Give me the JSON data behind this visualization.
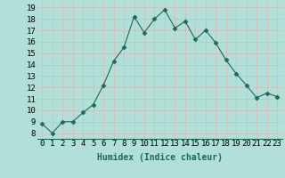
{
  "x": [
    0,
    1,
    2,
    3,
    4,
    5,
    6,
    7,
    8,
    9,
    10,
    11,
    12,
    13,
    14,
    15,
    16,
    17,
    18,
    19,
    20,
    21,
    22,
    23
  ],
  "y": [
    8.8,
    8.0,
    9.0,
    9.0,
    9.8,
    10.5,
    12.2,
    14.3,
    15.5,
    18.2,
    16.8,
    18.0,
    18.8,
    17.2,
    17.8,
    16.2,
    17.0,
    15.9,
    14.4,
    13.2,
    12.2,
    11.1,
    11.5,
    11.2
  ],
  "line_color": "#1a6b5a",
  "marker": "D",
  "markersize": 2.5,
  "linewidth": 0.8,
  "xlabel": "Humidex (Indice chaleur)",
  "ylabel_ticks": [
    8,
    9,
    10,
    11,
    12,
    13,
    14,
    15,
    16,
    17,
    18,
    19
  ],
  "ylim": [
    7.5,
    19.5
  ],
  "xlim": [
    -0.5,
    23.5
  ],
  "bg_color": "#b2e0d8",
  "grid_color": "#d8b8b8",
  "xlabel_fontsize": 7,
  "tick_fontsize": 6.5
}
